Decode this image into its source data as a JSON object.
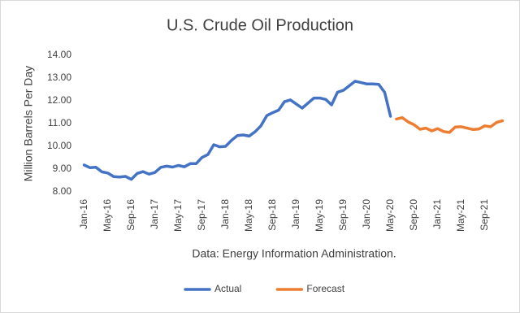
{
  "chart_data": {
    "type": "line",
    "title": "U.S. Crude Oil Production",
    "y_label": "Million Barrels Per Day",
    "note": "Data: Energy Information Administration.",
    "categories": [
      "Jan-16",
      null,
      null,
      null,
      "May-16",
      null,
      null,
      null,
      "Sep-16",
      null,
      null,
      null,
      "Jan-17",
      null,
      null,
      null,
      "May-17",
      null,
      null,
      null,
      "Sep-17",
      null,
      null,
      null,
      "Jan-18",
      null,
      null,
      null,
      "May-18",
      null,
      null,
      null,
      "Sep-18",
      null,
      null,
      null,
      "Jan-19",
      null,
      null,
      null,
      "May-19",
      null,
      null,
      null,
      "Sep-19",
      null,
      null,
      null,
      "Jan-20",
      null,
      null,
      null,
      "May-20",
      null,
      null,
      null,
      "Sep-20",
      null,
      null,
      null,
      "Jan-21",
      null,
      null,
      null,
      "May-21",
      null,
      null,
      null,
      "Sep-21",
      null,
      null,
      null
    ],
    "series": [
      {
        "name": "Actual",
        "color": "#4472c4",
        "values": [
          9.18,
          9.06,
          9.08,
          8.88,
          8.83,
          8.67,
          8.65,
          8.68,
          8.55,
          8.81,
          8.89,
          8.78,
          8.85,
          9.08,
          9.13,
          9.09,
          9.16,
          9.1,
          9.24,
          9.24,
          9.51,
          9.64,
          10.07,
          9.98,
          10.0,
          10.26,
          10.47,
          10.5,
          10.45,
          10.64,
          10.9,
          11.35,
          11.48,
          11.59,
          11.96,
          12.04,
          11.86,
          11.68,
          11.9,
          12.12,
          12.12,
          12.06,
          11.82,
          12.38,
          12.46,
          12.66,
          12.86,
          12.8,
          12.74,
          12.74,
          12.72,
          12.37,
          11.32,
          null,
          null,
          null,
          null,
          null,
          null,
          null,
          null,
          null,
          null,
          null,
          null,
          null,
          null,
          null,
          null,
          null,
          null,
          null
        ]
      },
      {
        "name": "Forecast",
        "color": "#ed7d31",
        "values": [
          null,
          null,
          null,
          null,
          null,
          null,
          null,
          null,
          null,
          null,
          null,
          null,
          null,
          null,
          null,
          null,
          null,
          null,
          null,
          null,
          null,
          null,
          null,
          null,
          null,
          null,
          null,
          null,
          null,
          null,
          null,
          null,
          null,
          null,
          null,
          null,
          null,
          null,
          null,
          null,
          null,
          null,
          null,
          null,
          null,
          null,
          null,
          null,
          null,
          null,
          null,
          null,
          null,
          11.2,
          11.26,
          11.07,
          10.95,
          10.75,
          10.8,
          10.68,
          10.78,
          10.65,
          10.61,
          10.85,
          10.86,
          10.8,
          10.74,
          10.76,
          10.9,
          10.86,
          11.05,
          11.12
        ]
      }
    ],
    "ylim": [
      8,
      14
    ],
    "yticks": [
      {
        "value": 8,
        "label": "8.00"
      },
      {
        "value": 9,
        "label": "9.00"
      },
      {
        "value": 10,
        "label": "10.00"
      },
      {
        "value": 11,
        "label": "11.00"
      },
      {
        "value": 12,
        "label": "12.00"
      },
      {
        "value": 13,
        "label": "13.00"
      },
      {
        "value": 14,
        "label": "14.00"
      }
    ],
    "grid": false,
    "legend": "bottom"
  }
}
